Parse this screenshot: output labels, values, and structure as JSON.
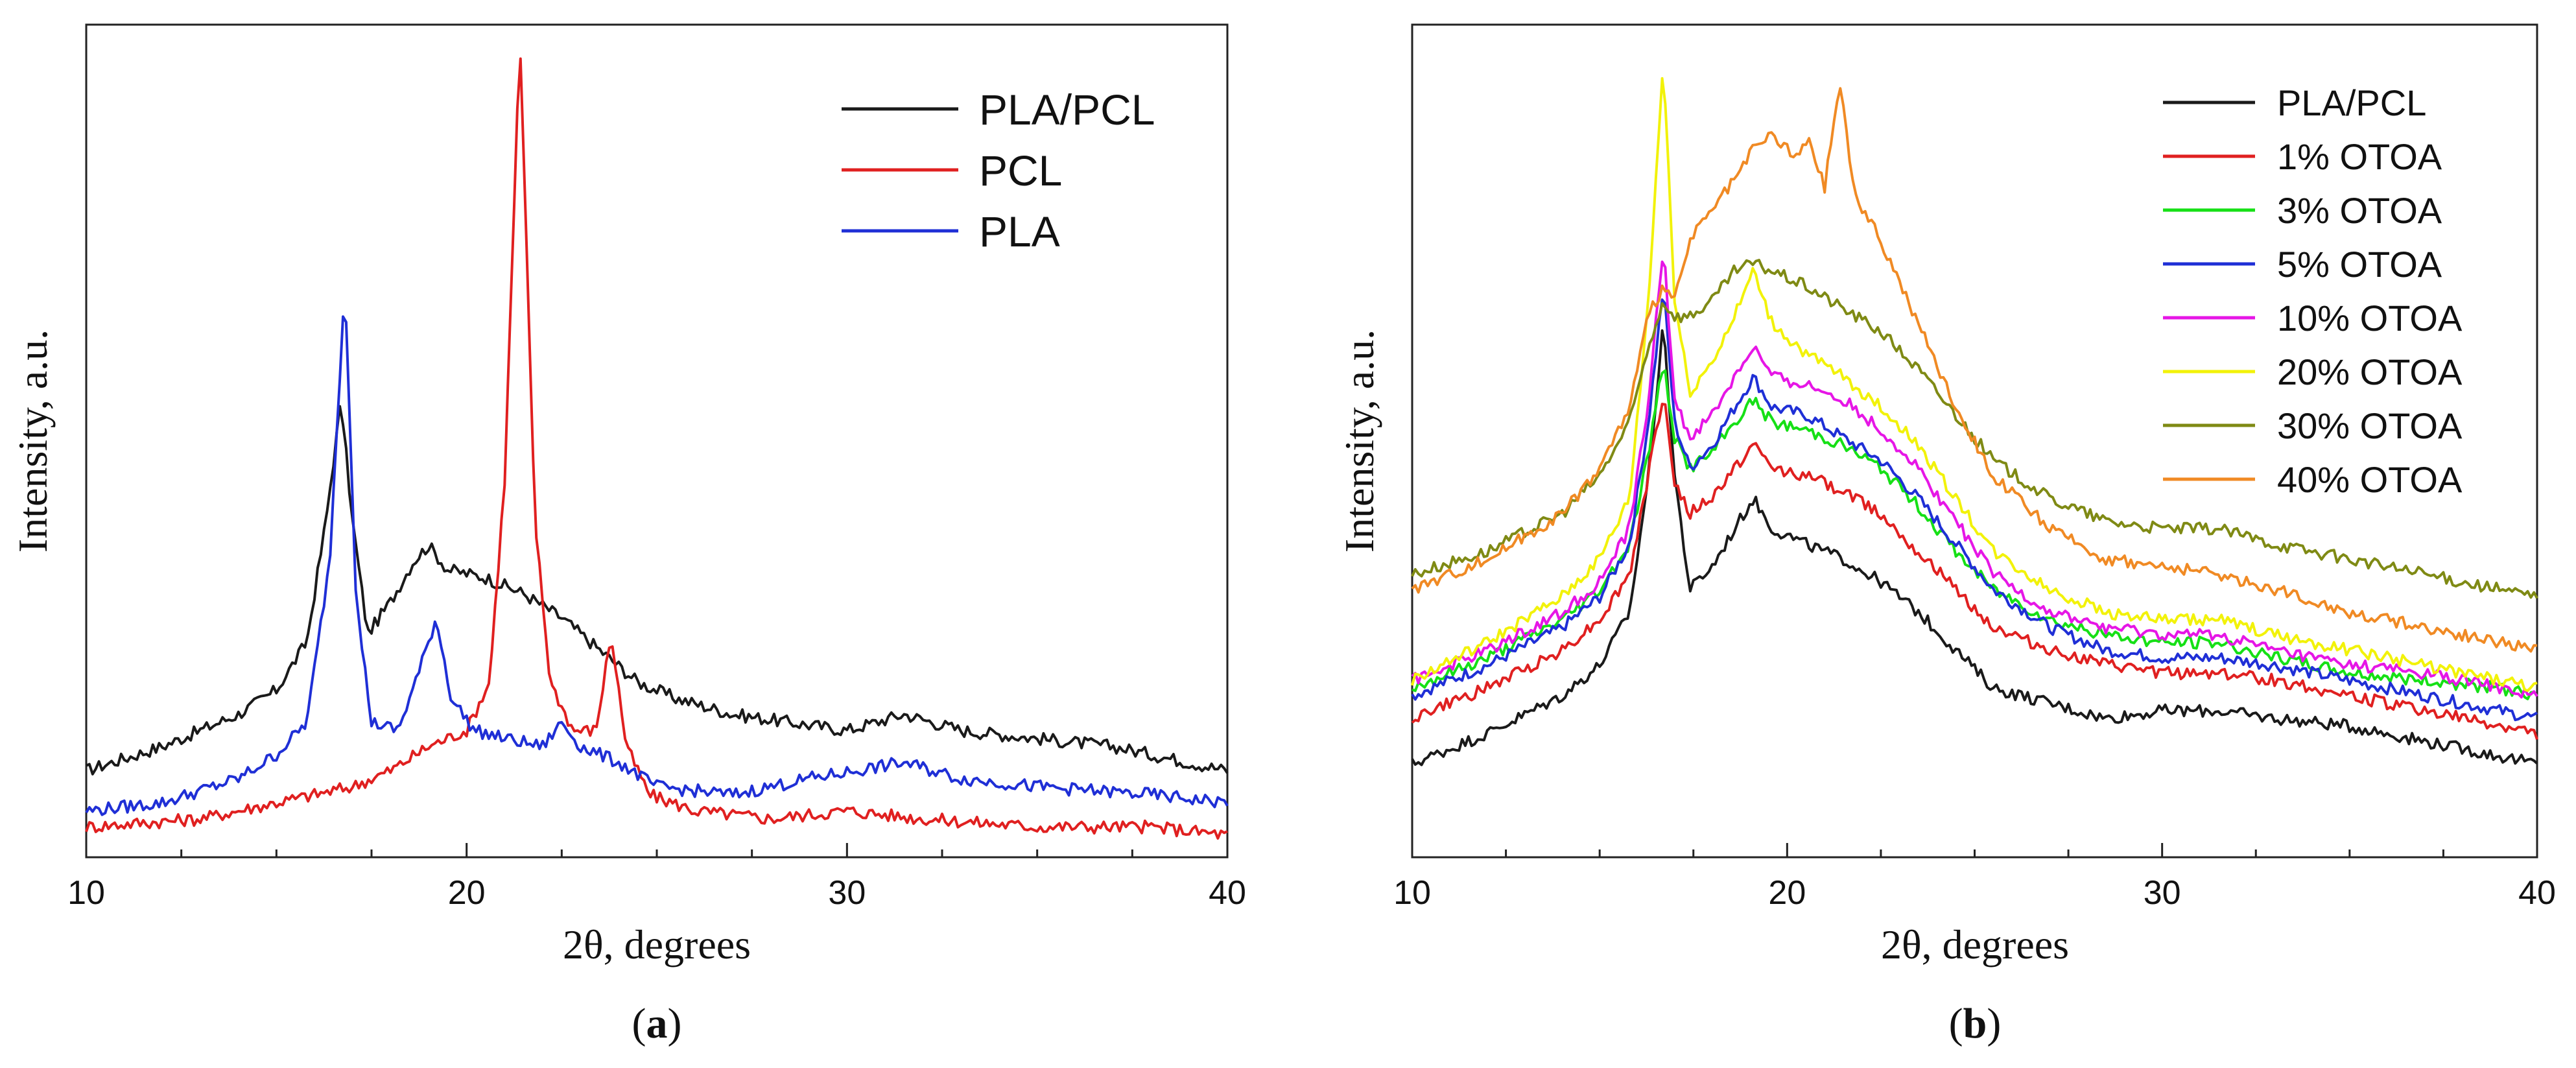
{
  "colors": {
    "PLA/PCL": "#1a1a1a",
    "PCL": "#e02020",
    "PLA": "#1f2fd6",
    "1% OTOA": "#e02020",
    "3% OTOA": "#16e016",
    "5% OTOA": "#1f2fd6",
    "10% OTOA": "#e616e6",
    "20% OTOA": "#f2f20a",
    "30% OTOA": "#7f8a14",
    "40% OTOA": "#f08a24"
  },
  "chart_data": [
    {
      "type": "line",
      "panel_label": "a",
      "title": "",
      "xlabel": "2θ, degrees",
      "ylabel": "Intensity, a.u.",
      "xlim": [
        10,
        40
      ],
      "ylim": [
        0,
        100
      ],
      "xticks": [
        10,
        20,
        30,
        40
      ],
      "legend_position": "top-right",
      "series": [
        {
          "name": "PLA/PCL",
          "x": [
            10,
            12,
            14,
            15,
            15.8,
            16.3,
            16.7,
            17.0,
            17.4,
            18.0,
            18.6,
            19.0,
            19.5,
            20.5,
            21.5,
            22.5,
            23.5,
            24.5,
            25.5,
            27,
            28.5,
            30,
            31.5,
            33,
            35,
            37,
            39,
            40
          ],
          "y": [
            9,
            12,
            16,
            19,
            25,
            40,
            55,
            40,
            26,
            30,
            35,
            37,
            34,
            33,
            31,
            28,
            24,
            20,
            18,
            16,
            15,
            14,
            16,
            14,
            13,
            12,
            10,
            9
          ]
        },
        {
          "name": "PCL",
          "x": [
            10,
            13,
            15,
            17,
            18,
            19,
            20,
            20.6,
            21.0,
            21.4,
            21.8,
            22.2,
            22.8,
            23.4,
            23.8,
            24.2,
            24.8,
            26,
            28,
            30,
            32,
            35,
            38,
            40
          ],
          "y": [
            2,
            3,
            5,
            7,
            9,
            12,
            14,
            20,
            45,
            100,
            40,
            20,
            14,
            14,
            26,
            12,
            6,
            4,
            3,
            4,
            3,
            2,
            2,
            1
          ]
        },
        {
          "name": "PLA",
          "x": [
            10,
            12,
            14,
            15,
            15.8,
            16.4,
            16.8,
            17.1,
            17.5,
            18.2,
            18.8,
            19.2,
            19.6,
            20.2,
            21,
            22,
            22.5,
            23,
            24,
            25,
            27,
            29,
            31.5,
            33,
            35,
            38,
            40
          ],
          "y": [
            4,
            5,
            8,
            11,
            15,
            35,
            70,
            30,
            15,
            14,
            22,
            28,
            18,
            14,
            13,
            12,
            15,
            12,
            10,
            7,
            6,
            8,
            10,
            8,
            7,
            6,
            5
          ]
        }
      ]
    },
    {
      "type": "line",
      "panel_label": "b",
      "title": "",
      "xlabel": "2θ, degrees",
      "ylabel": "Intensity, a.u.",
      "xlim": [
        10,
        40
      ],
      "ylim": [
        0,
        100
      ],
      "xticks": [
        10,
        20,
        30,
        40
      ],
      "legend_position": "top-right",
      "series": [
        {
          "name": "PLA/PCL",
          "x": [
            10,
            12,
            14,
            15,
            15.8,
            16.3,
            16.7,
            17.0,
            17.4,
            18.0,
            18.6,
            19.1,
            19.6,
            20.5,
            21.5,
            22.5,
            23.5,
            24.5,
            25.5,
            27,
            28.5,
            30,
            31.5,
            33,
            35,
            37,
            39,
            40
          ],
          "y": [
            7,
            11,
            16,
            20,
            27,
            45,
            65,
            45,
            30,
            33,
            38,
            42,
            38,
            36,
            34,
            31,
            27,
            22,
            17,
            15,
            13,
            14,
            14,
            13,
            12,
            10,
            8,
            7
          ]
        },
        {
          "name": "1% OTOA",
          "x": [
            10,
            12,
            14,
            15,
            15.8,
            16.3,
            16.7,
            17.0,
            17.4,
            18.0,
            18.6,
            19.1,
            19.6,
            20.5,
            21.5,
            22.5,
            23.5,
            24.5,
            25.5,
            27,
            28.5,
            30,
            31.5,
            33,
            35,
            37,
            39,
            40
          ],
          "y": [
            13,
            17,
            22,
            26,
            32,
            45,
            56,
            44,
            40,
            42,
            46,
            49,
            46,
            45,
            43,
            40,
            35,
            30,
            25,
            22,
            20,
            19,
            19,
            18,
            16,
            14,
            12,
            11
          ]
        },
        {
          "name": "3% OTOA",
          "x": [
            10,
            12,
            14,
            15,
            15.8,
            16.3,
            16.7,
            17.0,
            17.4,
            18.0,
            18.6,
            19.1,
            19.6,
            20.5,
            21.5,
            22.5,
            23.5,
            24.5,
            25.5,
            27,
            28.5,
            30,
            31.5,
            33,
            35,
            37,
            39,
            40
          ],
          "y": [
            17,
            21,
            26,
            30,
            36,
            48,
            60,
            50,
            46,
            48,
            52,
            55,
            52,
            51,
            49,
            46,
            41,
            35,
            30,
            26,
            24,
            23,
            23,
            21,
            19,
            18,
            17,
            16
          ]
        },
        {
          "name": "5% OTOA",
          "x": [
            10,
            12,
            14,
            15,
            15.8,
            16.3,
            16.7,
            17.0,
            17.4,
            18.0,
            18.6,
            19.1,
            19.6,
            20.5,
            21.5,
            22.5,
            23.5,
            24.5,
            25.5,
            27,
            28.5,
            30,
            31.5,
            33,
            35,
            37,
            39,
            40
          ],
          "y": [
            16,
            20,
            25,
            29,
            36,
            52,
            70,
            52,
            46,
            49,
            54,
            58,
            54,
            53,
            50,
            47,
            42,
            36,
            30,
            25,
            22,
            21,
            21,
            20,
            18,
            16,
            14,
            13
          ]
        },
        {
          "name": "10% OTOA",
          "x": [
            10,
            12,
            14,
            15,
            15.8,
            16.3,
            16.7,
            17.0,
            17.4,
            18.0,
            18.6,
            19.1,
            19.6,
            20.5,
            21.5,
            22.5,
            23.5,
            24.5,
            25.5,
            27,
            28.5,
            30,
            31.5,
            33,
            35,
            37,
            39,
            40
          ],
          "y": [
            18,
            22,
            27,
            31,
            38,
            55,
            75,
            55,
            50,
            53,
            58,
            62,
            58,
            57,
            55,
            51,
            46,
            39,
            32,
            27,
            25,
            24,
            24,
            22,
            20,
            19,
            17,
            16
          ]
        },
        {
          "name": "20% OTOA",
          "x": [
            10,
            12,
            14,
            15,
            15.8,
            16.3,
            16.7,
            17.0,
            17.4,
            18.0,
            18.6,
            19.1,
            19.6,
            20.5,
            21.5,
            22.5,
            23.5,
            24.5,
            25.5,
            27,
            28.5,
            30,
            31.5,
            33,
            35,
            37,
            39,
            40
          ],
          "y": [
            18,
            23,
            29,
            34,
            42,
            68,
            100,
            68,
            56,
            60,
            66,
            72,
            65,
            61,
            58,
            54,
            49,
            42,
            35,
            30,
            27,
            26,
            26,
            24,
            22,
            20,
            18,
            17
          ]
        },
        {
          "name": "30% OTOA",
          "x": [
            10,
            12,
            14,
            15,
            15.8,
            16.3,
            16.7,
            17.0,
            17.4,
            18.0,
            18.6,
            19.1,
            19.6,
            20.5,
            21.5,
            22.5,
            23.5,
            24.5,
            25.5,
            27,
            28.5,
            30,
            31.5,
            33,
            35,
            37,
            39,
            40
          ],
          "y": [
            32,
            35,
            40,
            45,
            52,
            62,
            68,
            66,
            66,
            68,
            72,
            73,
            72,
            70,
            67,
            64,
            59,
            53,
            47,
            42,
            39,
            38,
            38,
            36,
            34,
            32,
            30,
            29
          ]
        },
        {
          "name": "40% OTOA",
          "x": [
            10,
            12,
            14,
            15,
            15.8,
            16.3,
            16.7,
            17.0,
            17.4,
            18.0,
            18.6,
            19.1,
            19.6,
            20.2,
            20.6,
            21.0,
            21.4,
            21.8,
            22.5,
            23.5,
            24.5,
            25.5,
            27,
            28.5,
            30,
            31.5,
            33,
            35,
            37,
            39,
            40
          ],
          "y": [
            30,
            34,
            40,
            46,
            54,
            66,
            70,
            68,
            76,
            80,
            84,
            88,
            90,
            87,
            89,
            83,
            97,
            82,
            76,
            65,
            54,
            45,
            38,
            34,
            33,
            32,
            30,
            27,
            25,
            23,
            22
          ]
        }
      ]
    }
  ]
}
